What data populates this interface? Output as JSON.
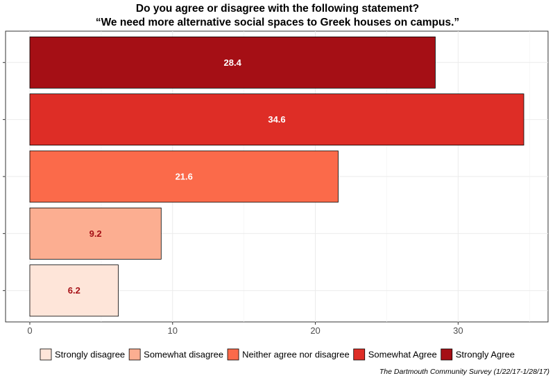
{
  "chart_data": {
    "type": "bar",
    "orientation": "horizontal",
    "title": [
      "Do you agree or disagree with the following statement?",
      "“We need more alternative social spaces to Greek houses on campus.”"
    ],
    "categories": [
      "Strongly disagree",
      "Somewhat disagree",
      "Neither agree nor disagree",
      "Somewhat Agree",
      "Strongly Agree"
    ],
    "values": [
      6.2,
      9.2,
      21.6,
      34.6,
      28.4
    ],
    "data_labels": [
      "6.2",
      "9.2",
      "21.6",
      "34.6",
      "28.4"
    ],
    "colors": [
      "#fee5d9",
      "#fcae91",
      "#fb6a4a",
      "#de2d26",
      "#a50f15"
    ],
    "label_colors": [
      "#a50f15",
      "#a50f15",
      "#ffffff",
      "#ffffff",
      "#ffffff"
    ],
    "x_ticks": [
      "0",
      "10",
      "20",
      "30"
    ],
    "xlim": [
      -1.7,
      36.3
    ],
    "xlabel": "",
    "ylabel": "",
    "grid": true,
    "legend_position": "bottom",
    "source": "The Dartmouth Community Survey (1/22/17-1/28/17)"
  }
}
